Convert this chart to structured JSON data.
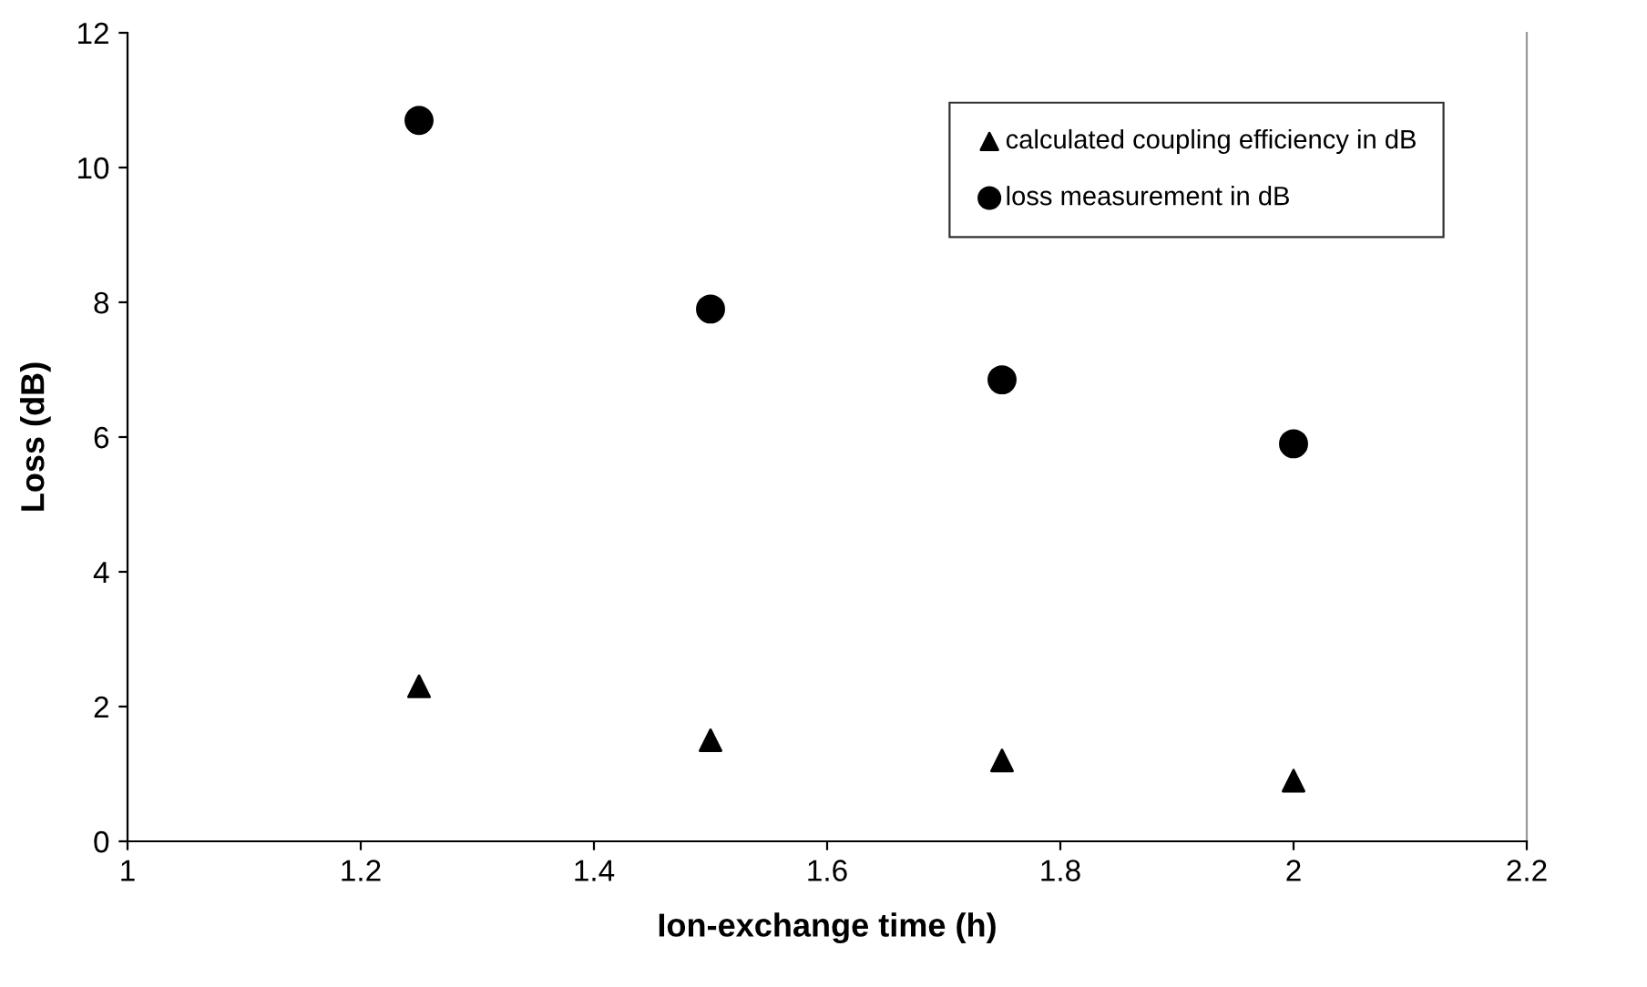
{
  "chart_data": {
    "type": "scatter",
    "xlabel": "Ion-exchange time (h)",
    "ylabel": "Loss (dB)",
    "x": [
      1.25,
      1.5,
      1.75,
      2.0
    ],
    "series": [
      {
        "name": "calculated coupling efficiency in dB",
        "color": "#000000",
        "marker": "triangle",
        "values": [
          2.3,
          1.5,
          1.2,
          0.9
        ]
      },
      {
        "name": "loss measurement in dB",
        "color": "#000000",
        "marker": "circle",
        "values": [
          10.7,
          7.9,
          6.85,
          5.9
        ]
      }
    ],
    "xlim": [
      1,
      2.2
    ],
    "xticks": [
      1,
      1.2,
      1.4,
      1.6,
      1.8,
      2,
      2.2
    ],
    "ylim": [
      0,
      12
    ],
    "yticks": [
      0,
      2,
      4,
      6,
      8,
      10,
      12
    ],
    "grid": false,
    "legend": "top right"
  }
}
